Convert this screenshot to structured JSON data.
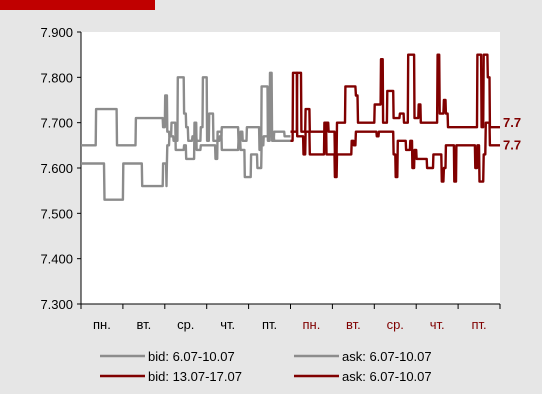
{
  "chart_data": {
    "type": "line",
    "title": "",
    "ylim": [
      7.3,
      7.9
    ],
    "yticks": [
      "7.300",
      "7.400",
      "7.500",
      "7.600",
      "7.700",
      "7.800",
      "7.900"
    ],
    "categories": [
      "пн.",
      "вт.",
      "ср.",
      "чт.",
      "пт.",
      "пн.",
      "вт.",
      "ср.",
      "чт.",
      "пт."
    ],
    "category_colors": [
      "#000000",
      "#000000",
      "#000000",
      "#000000",
      "#000000",
      "#800000",
      "#800000",
      "#800000",
      "#800000",
      "#800000"
    ],
    "end_labels": [
      "7.7",
      "7.7"
    ],
    "series": [
      {
        "name": "bid: 6.07-10.07",
        "color": "#8c8c8c",
        "x": [
          0,
          0.55,
          0.56,
          1.0,
          1.01,
          1.45,
          1.46,
          1.95,
          1.96,
          2.03,
          2.04,
          2.05,
          2.06,
          2.1,
          2.11,
          2.15,
          2.16,
          2.25,
          2.26,
          2.45,
          2.46,
          2.5,
          2.51,
          2.7,
          2.71,
          2.75,
          2.76,
          2.85,
          2.86,
          3.2,
          3.21,
          3.25,
          3.26,
          3.35,
          3.36,
          3.75,
          3.76,
          3.8,
          3.81,
          3.9,
          3.91,
          4.05,
          4.06,
          4.2,
          4.21,
          4.3,
          4.31,
          4.35,
          4.36,
          4.6,
          4.61,
          5.0
        ],
        "y": [
          7.61,
          7.61,
          7.53,
          7.53,
          7.61,
          7.61,
          7.56,
          7.56,
          7.61,
          7.61,
          7.56,
          7.61,
          7.65,
          7.65,
          7.67,
          7.67,
          7.7,
          7.7,
          7.64,
          7.64,
          7.65,
          7.65,
          7.62,
          7.62,
          7.7,
          7.7,
          7.64,
          7.64,
          7.65,
          7.65,
          7.62,
          7.62,
          7.68,
          7.68,
          7.64,
          7.64,
          7.66,
          7.66,
          7.64,
          7.64,
          7.58,
          7.58,
          7.63,
          7.63,
          7.6,
          7.6,
          7.65,
          7.65,
          7.67,
          7.67,
          7.66,
          7.66
        ]
      },
      {
        "name": "ask: 6.07-10.07",
        "color": "#8c8c8c",
        "x": [
          0,
          0.35,
          0.36,
          0.85,
          0.86,
          1.3,
          1.31,
          1.95,
          1.96,
          2.0,
          2.01,
          2.05,
          2.06,
          2.1,
          2.11,
          2.2,
          2.21,
          2.3,
          2.31,
          2.45,
          2.46,
          2.5,
          2.51,
          2.55,
          2.56,
          2.65,
          2.66,
          2.75,
          2.76,
          2.85,
          2.86,
          2.9,
          2.91,
          3.0,
          3.01,
          3.05,
          3.06,
          3.15,
          3.16,
          3.3,
          3.31,
          3.35,
          3.36,
          3.75,
          3.76,
          3.8,
          3.81,
          3.85,
          3.86,
          3.95,
          3.96,
          4.25,
          4.26,
          4.3,
          4.31,
          4.45,
          4.46,
          4.5,
          4.51,
          4.55,
          4.56,
          4.6,
          4.61,
          4.85,
          4.86,
          5.0
        ],
        "y": [
          7.65,
          7.65,
          7.73,
          7.73,
          7.65,
          7.65,
          7.71,
          7.71,
          7.69,
          7.69,
          7.76,
          7.76,
          7.68,
          7.68,
          7.67,
          7.67,
          7.66,
          7.66,
          7.8,
          7.8,
          7.72,
          7.72,
          7.69,
          7.69,
          7.66,
          7.66,
          7.67,
          7.67,
          7.66,
          7.66,
          7.69,
          7.69,
          7.8,
          7.8,
          7.66,
          7.66,
          7.72,
          7.72,
          7.66,
          7.66,
          7.67,
          7.67,
          7.69,
          7.69,
          7.66,
          7.66,
          7.68,
          7.68,
          7.66,
          7.66,
          7.69,
          7.69,
          7.64,
          7.64,
          7.78,
          7.78,
          7.66,
          7.66,
          7.81,
          7.81,
          7.66,
          7.66,
          7.68,
          7.68,
          7.67,
          7.67
        ]
      },
      {
        "name": "bid: 13.07-17.07",
        "color": "#800000",
        "x": [
          5.0,
          5.05,
          5.06,
          5.15,
          5.16,
          5.3,
          5.31,
          5.35,
          5.36,
          5.45,
          5.46,
          5.8,
          5.81,
          5.85,
          5.86,
          6.05,
          6.06,
          6.1,
          6.11,
          6.45,
          6.46,
          6.5,
          6.51,
          6.55,
          6.56,
          7.05,
          7.06,
          7.1,
          7.11,
          7.45,
          7.46,
          7.5,
          7.51,
          7.55,
          7.56,
          7.75,
          7.76,
          7.85,
          7.86,
          7.9,
          7.91,
          7.95,
          7.96,
          8.0,
          8.01,
          8.25,
          8.26,
          8.4,
          8.41,
          8.6,
          8.61,
          8.65,
          8.66,
          8.7,
          8.71,
          8.9,
          8.91,
          8.95,
          8.96,
          9.4,
          9.41,
          9.45,
          9.46,
          9.5,
          9.51,
          9.6,
          9.61,
          9.65,
          9.66,
          9.75,
          9.76,
          9.8,
          9.81,
          10.0
        ],
        "y": [
          7.66,
          7.66,
          7.81,
          7.81,
          7.67,
          7.67,
          7.63,
          7.63,
          7.68,
          7.68,
          7.63,
          7.63,
          7.7,
          7.7,
          7.63,
          7.63,
          7.58,
          7.58,
          7.63,
          7.63,
          7.66,
          7.66,
          7.65,
          7.65,
          7.68,
          7.68,
          7.67,
          7.67,
          7.68,
          7.68,
          7.63,
          7.63,
          7.58,
          7.58,
          7.66,
          7.66,
          7.64,
          7.64,
          7.66,
          7.66,
          7.6,
          7.6,
          7.64,
          7.64,
          7.62,
          7.62,
          7.6,
          7.6,
          7.63,
          7.63,
          7.57,
          7.57,
          7.6,
          7.6,
          7.65,
          7.65,
          7.57,
          7.57,
          7.65,
          7.65,
          7.6,
          7.6,
          7.65,
          7.65,
          7.57,
          7.57,
          7.63,
          7.63,
          7.7,
          7.7,
          7.65,
          7.65,
          7.65,
          7.65
        ]
      },
      {
        "name": "ask: 6.07-10.07",
        "color": "#800000",
        "x": [
          5.0,
          5.05,
          5.06,
          5.15,
          5.16,
          5.25,
          5.26,
          5.35,
          5.36,
          5.45,
          5.46,
          5.85,
          5.86,
          5.9,
          5.91,
          6.05,
          6.06,
          6.1,
          6.11,
          6.3,
          6.31,
          6.55,
          6.56,
          6.6,
          6.61,
          7.0,
          7.01,
          7.15,
          7.16,
          7.2,
          7.21,
          7.3,
          7.31,
          7.45,
          7.46,
          7.6,
          7.61,
          7.7,
          7.71,
          7.8,
          7.81,
          7.95,
          7.96,
          8.05,
          8.06,
          8.1,
          8.11,
          8.5,
          8.51,
          8.55,
          8.56,
          8.65,
          8.66,
          8.7,
          8.71,
          8.75,
          8.76,
          8.95,
          8.96,
          9.45,
          9.46,
          9.55,
          9.56,
          9.6,
          9.61,
          9.7,
          9.71,
          9.75,
          9.76,
          9.8,
          9.81,
          10.0
        ],
        "y": [
          7.68,
          7.68,
          7.68,
          7.68,
          7.81,
          7.81,
          7.68,
          7.68,
          7.73,
          7.73,
          7.68,
          7.68,
          7.7,
          7.7,
          7.68,
          7.68,
          7.63,
          7.63,
          7.7,
          7.7,
          7.78,
          7.78,
          7.76,
          7.76,
          7.7,
          7.7,
          7.74,
          7.74,
          7.84,
          7.84,
          7.7,
          7.7,
          7.77,
          7.77,
          7.71,
          7.71,
          7.72,
          7.72,
          7.7,
          7.7,
          7.85,
          7.85,
          7.71,
          7.71,
          7.74,
          7.74,
          7.7,
          7.7,
          7.85,
          7.85,
          7.72,
          7.72,
          7.75,
          7.75,
          7.72,
          7.72,
          7.69,
          7.69,
          7.69,
          7.69,
          7.85,
          7.85,
          7.69,
          7.69,
          7.85,
          7.85,
          7.8,
          7.8,
          7.69,
          7.69,
          7.69,
          7.69
        ]
      }
    ],
    "legend": "bottom"
  }
}
